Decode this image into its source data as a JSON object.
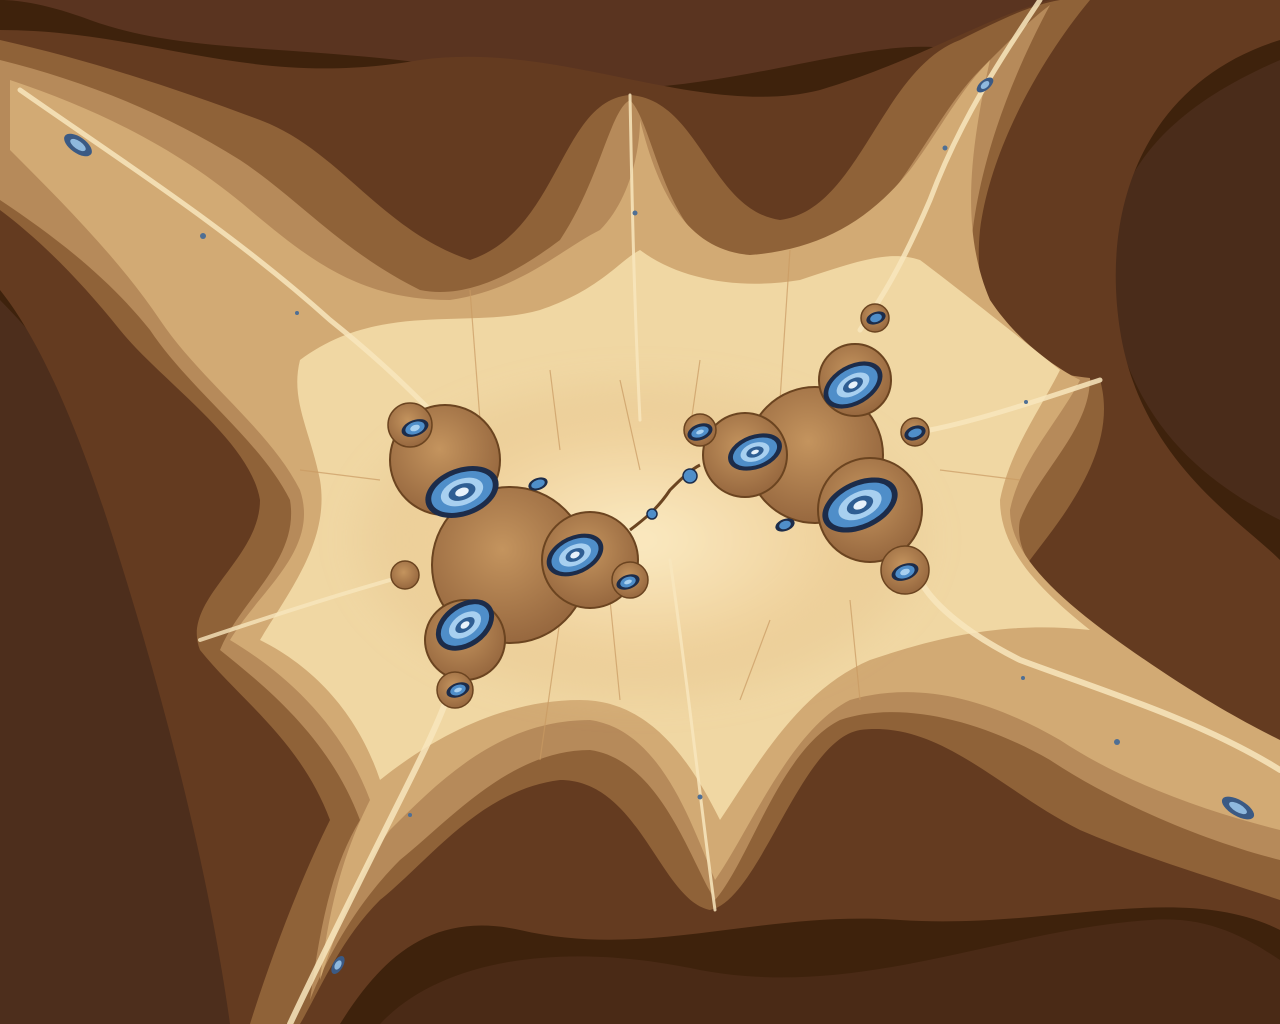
{
  "image": {
    "kind": "fractal-render",
    "subject": "mandelbrot-minibrot-filaments",
    "palette": {
      "darkest_brown": "#3e220c",
      "dark_brown": "#4d2e1c",
      "mid_brown": "#643b20",
      "caramel": "#8f6238",
      "tan": "#b68a5a",
      "light_tan": "#d2aa74",
      "cream": "#f0d7a3",
      "pale_cream": "#f8e6bd",
      "set_body": "#a9794b",
      "spiral_blue": "#4f8ec9",
      "spiral_light_blue": "#a8d0f0",
      "spiral_dark": "#1c2c4a"
    }
  }
}
